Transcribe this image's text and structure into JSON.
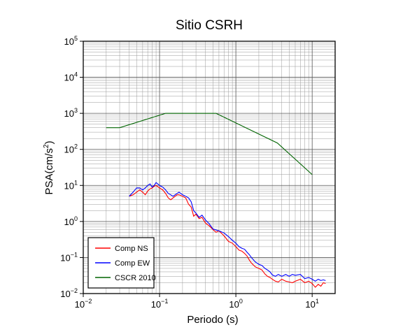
{
  "chart_data": {
    "type": "line",
    "title": "Sitio CSRH",
    "xlabel": "Periodo (s)",
    "ylabel": "PSA(cm/s2)",
    "xscale": "log",
    "yscale": "log",
    "xlim": [
      0.01,
      20
    ],
    "ylim": [
      0.01,
      100000
    ],
    "grid": true,
    "legend_position": "bottom-left",
    "x_ticks": [
      {
        "base": "10",
        "exp": "−2",
        "value": 0.01
      },
      {
        "base": "10",
        "exp": "−1",
        "value": 0.1
      },
      {
        "base": "10",
        "exp": "0",
        "value": 1
      },
      {
        "base": "10",
        "exp": "1",
        "value": 10
      }
    ],
    "y_ticks": [
      {
        "base": "10",
        "exp": "−2",
        "value": 0.01
      },
      {
        "base": "10",
        "exp": "−1",
        "value": 0.1
      },
      {
        "base": "10",
        "exp": "0",
        "value": 1
      },
      {
        "base": "10",
        "exp": "1",
        "value": 10
      },
      {
        "base": "10",
        "exp": "2",
        "value": 100
      },
      {
        "base": "10",
        "exp": "3",
        "value": 1000
      },
      {
        "base": "10",
        "exp": "4",
        "value": 10000
      },
      {
        "base": "10",
        "exp": "5",
        "value": 100000
      }
    ],
    "series": [
      {
        "name": "Comp NS",
        "color": "#ff0000",
        "x": [
          0.04,
          0.045,
          0.05,
          0.055,
          0.06,
          0.065,
          0.07,
          0.075,
          0.08,
          0.085,
          0.09,
          0.1,
          0.11,
          0.12,
          0.13,
          0.14,
          0.15,
          0.16,
          0.17,
          0.18,
          0.2,
          0.22,
          0.24,
          0.26,
          0.28,
          0.3,
          0.33,
          0.36,
          0.4,
          0.45,
          0.5,
          0.55,
          0.6,
          0.7,
          0.8,
          0.9,
          1.0,
          1.1,
          1.2,
          1.3,
          1.4,
          1.5,
          1.6,
          1.8,
          2.0,
          2.2,
          2.4,
          2.6,
          2.8,
          3.0,
          3.3,
          3.6,
          4.0,
          4.5,
          5.0,
          5.5,
          6.0,
          7.0,
          8.0,
          9.0,
          10.0,
          11.0,
          12.0,
          13.0,
          14.0,
          15.0
        ],
        "y": [
          5,
          5.5,
          6.5,
          7.5,
          6.5,
          5.5,
          7,
          8,
          8.5,
          9.5,
          10,
          8.5,
          7.5,
          6,
          4.5,
          4,
          4.5,
          5,
          5.5,
          5.5,
          5,
          4.5,
          3,
          2.5,
          1.4,
          1.6,
          1.2,
          1.3,
          0.9,
          0.75,
          0.6,
          0.5,
          0.55,
          0.4,
          0.28,
          0.25,
          0.2,
          0.16,
          0.15,
          0.13,
          0.11,
          0.085,
          0.07,
          0.055,
          0.05,
          0.045,
          0.035,
          0.03,
          0.028,
          0.025,
          0.022,
          0.021,
          0.025,
          0.022,
          0.021,
          0.02,
          0.022,
          0.025,
          0.02,
          0.022,
          0.019,
          0.015,
          0.018,
          0.016,
          0.02,
          0.019
        ]
      },
      {
        "name": "Comp EW",
        "color": "#0000ff",
        "x": [
          0.04,
          0.045,
          0.05,
          0.055,
          0.06,
          0.065,
          0.07,
          0.075,
          0.08,
          0.085,
          0.09,
          0.1,
          0.11,
          0.12,
          0.13,
          0.14,
          0.15,
          0.16,
          0.17,
          0.18,
          0.2,
          0.22,
          0.24,
          0.26,
          0.28,
          0.3,
          0.33,
          0.36,
          0.4,
          0.45,
          0.5,
          0.55,
          0.6,
          0.7,
          0.8,
          0.9,
          1.0,
          1.1,
          1.2,
          1.3,
          1.4,
          1.5,
          1.6,
          1.8,
          2.0,
          2.2,
          2.4,
          2.6,
          2.8,
          3.0,
          3.3,
          3.6,
          4.0,
          4.5,
          5.0,
          5.5,
          6.0,
          7.0,
          8.0,
          9.0,
          10.0,
          11.0,
          12.0,
          13.0,
          14.0,
          15.0
        ],
        "y": [
          5,
          6.5,
          8.5,
          8.5,
          7.5,
          8.5,
          10,
          11,
          9,
          10,
          12,
          10,
          9,
          7.5,
          6,
          5.5,
          5,
          5.5,
          6,
          6.5,
          5.5,
          5,
          4.5,
          3.5,
          2,
          1.7,
          1.3,
          1.5,
          1.1,
          0.85,
          0.62,
          0.58,
          0.55,
          0.48,
          0.38,
          0.3,
          0.25,
          0.2,
          0.18,
          0.17,
          0.14,
          0.12,
          0.1,
          0.075,
          0.065,
          0.06,
          0.05,
          0.045,
          0.04,
          0.033,
          0.03,
          0.034,
          0.03,
          0.034,
          0.03,
          0.034,
          0.032,
          0.034,
          0.026,
          0.028,
          0.025,
          0.022,
          0.025,
          0.023,
          0.024,
          0.023
        ]
      },
      {
        "name": "CSCR 2010",
        "color": "#006400",
        "x": [
          0.02,
          0.03,
          0.12,
          0.55,
          3.5,
          10
        ],
        "y": [
          400,
          400,
          1000,
          1000,
          150,
          20
        ]
      }
    ]
  }
}
